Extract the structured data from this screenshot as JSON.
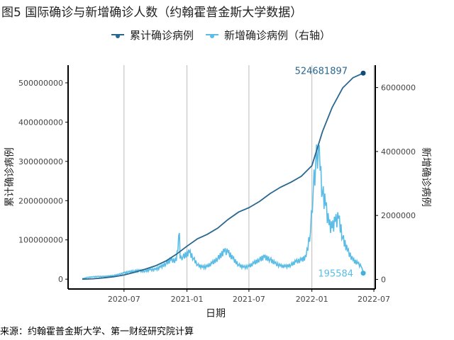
{
  "chart_data": {
    "type": "line",
    "title": "图5 国际确诊与新增确诊人数（约翰霍普金斯大学数据）",
    "source": "来源：约翰霍普金斯大学、第一财经研究院计算",
    "xlabel": "日期",
    "ylabel": "累计确诊病例",
    "y2label": "新增确诊病例",
    "x_ticks": [
      "2020-07",
      "2021-01",
      "2021-07",
      "2022-01",
      "2022-07"
    ],
    "xlim": [
      "2020-01-01",
      "2022-07-01"
    ],
    "y_ticks": [
      0,
      100000000,
      200000000,
      300000000,
      400000000,
      500000000
    ],
    "y2_ticks": [
      0,
      2000000,
      4000000,
      6000000
    ],
    "ylim": [
      -25000000,
      545000000
    ],
    "y2lim": [
      -300000,
      6700000
    ],
    "grid": "vertical major",
    "legend_position": "top",
    "colors": {
      "cumulative": "#2a6790",
      "new": "#5bbde6",
      "end_cum": "#0e4a7a",
      "end_new": "#3fb0e0"
    },
    "series": [
      {
        "name": "累计确诊病例",
        "axis": "left",
        "end_label": "524681897",
        "points": [
          [
            "2020-03-01",
            100000
          ],
          [
            "2020-04-01",
            900000
          ],
          [
            "2020-05-01",
            3300000
          ],
          [
            "2020-06-01",
            6200000
          ],
          [
            "2020-07-01",
            10600000
          ],
          [
            "2020-08-01",
            17600000
          ],
          [
            "2020-09-01",
            25500000
          ],
          [
            "2020-10-01",
            34000000
          ],
          [
            "2020-11-01",
            46500000
          ],
          [
            "2020-12-01",
            63500000
          ],
          [
            "2021-01-01",
            84000000
          ],
          [
            "2021-02-01",
            103000000
          ],
          [
            "2021-03-01",
            114000000
          ],
          [
            "2021-04-01",
            130000000
          ],
          [
            "2021-05-01",
            152000000
          ],
          [
            "2021-06-01",
            171000000
          ],
          [
            "2021-07-01",
            182000000
          ],
          [
            "2021-08-01",
            198000000
          ],
          [
            "2021-09-01",
            218000000
          ],
          [
            "2021-10-01",
            234000000
          ],
          [
            "2021-11-01",
            247000000
          ],
          [
            "2021-12-01",
            262000000
          ],
          [
            "2022-01-01",
            289000000
          ],
          [
            "2022-02-01",
            376000000
          ],
          [
            "2022-03-01",
            437000000
          ],
          [
            "2022-04-01",
            487000000
          ],
          [
            "2022-05-01",
            513000000
          ],
          [
            "2022-05-31",
            524681897
          ]
        ]
      },
      {
        "name": "新增确诊病例（右轴）",
        "axis": "right",
        "end_label": "195584",
        "points": [
          [
            "2020-03-01",
            20000
          ],
          [
            "2020-03-15",
            60000
          ],
          [
            "2020-04-01",
            80000
          ],
          [
            "2020-04-15",
            90000
          ],
          [
            "2020-05-01",
            90000
          ],
          [
            "2020-05-15",
            100000
          ],
          [
            "2020-06-01",
            120000
          ],
          [
            "2020-06-15",
            150000
          ],
          [
            "2020-07-01",
            200000
          ],
          [
            "2020-07-15",
            230000
          ],
          [
            "2020-08-01",
            260000
          ],
          [
            "2020-08-15",
            270000
          ],
          [
            "2020-09-01",
            260000
          ],
          [
            "2020-09-15",
            300000
          ],
          [
            "2020-10-01",
            310000
          ],
          [
            "2020-10-15",
            380000
          ],
          [
            "2020-11-01",
            500000
          ],
          [
            "2020-11-15",
            600000
          ],
          [
            "2020-12-01",
            580000
          ],
          [
            "2020-12-10",
            1450000
          ],
          [
            "2020-12-12",
            650000
          ],
          [
            "2020-12-20",
            700000
          ],
          [
            "2021-01-08",
            850000
          ],
          [
            "2021-01-20",
            650000
          ],
          [
            "2021-02-01",
            450000
          ],
          [
            "2021-02-15",
            380000
          ],
          [
            "2021-03-01",
            400000
          ],
          [
            "2021-03-15",
            500000
          ],
          [
            "2021-04-01",
            650000
          ],
          [
            "2021-04-20",
            880000
          ],
          [
            "2021-05-01",
            850000
          ],
          [
            "2021-05-15",
            650000
          ],
          [
            "2021-06-01",
            450000
          ],
          [
            "2021-06-15",
            380000
          ],
          [
            "2021-07-01",
            400000
          ],
          [
            "2021-07-15",
            500000
          ],
          [
            "2021-08-01",
            620000
          ],
          [
            "2021-08-15",
            700000
          ],
          [
            "2021-09-01",
            620000
          ],
          [
            "2021-09-15",
            500000
          ],
          [
            "2021-10-01",
            420000
          ],
          [
            "2021-10-15",
            400000
          ],
          [
            "2021-11-01",
            450000
          ],
          [
            "2021-11-15",
            550000
          ],
          [
            "2021-12-01",
            600000
          ],
          [
            "2021-12-15",
            700000
          ],
          [
            "2021-12-28",
            1500000
          ],
          [
            "2022-01-05",
            2800000
          ],
          [
            "2022-01-12",
            3600000
          ],
          [
            "2022-01-20",
            4100000
          ],
          [
            "2022-01-25",
            3400000
          ],
          [
            "2022-02-01",
            2700000
          ],
          [
            "2022-02-10",
            2300000
          ],
          [
            "2022-02-20",
            1700000
          ],
          [
            "2022-03-01",
            1600000
          ],
          [
            "2022-03-10",
            1800000
          ],
          [
            "2022-03-20",
            1900000
          ],
          [
            "2022-04-01",
            1300000
          ],
          [
            "2022-04-15",
            900000
          ],
          [
            "2022-05-01",
            600000
          ],
          [
            "2022-05-15",
            500000
          ],
          [
            "2022-05-25",
            400000
          ],
          [
            "2022-05-31",
            195584
          ]
        ]
      }
    ]
  }
}
